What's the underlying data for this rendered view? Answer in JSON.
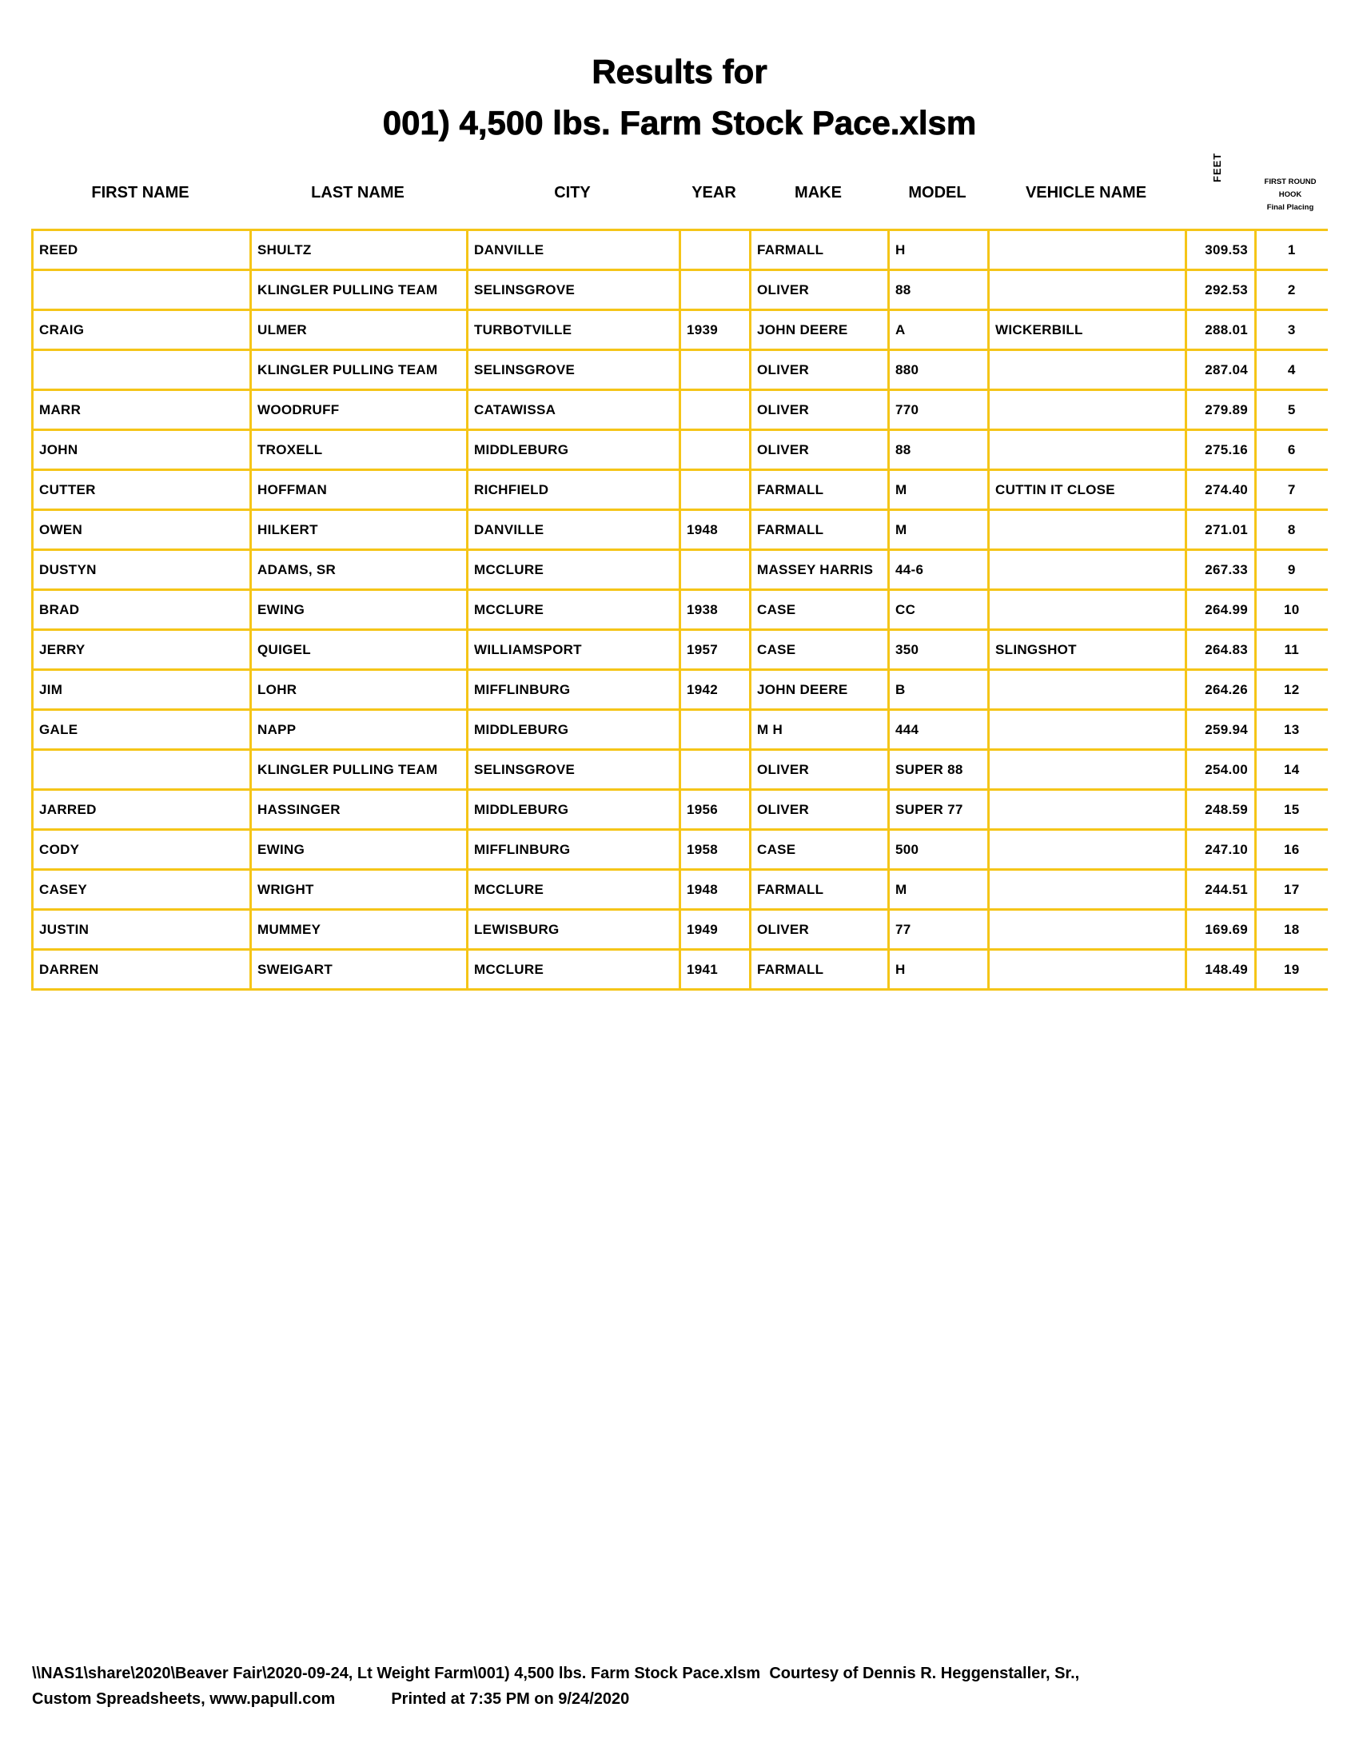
{
  "title": {
    "line1": "Results for",
    "line2": "001) 4,500 lbs. Farm Stock Pace.xlsm"
  },
  "headers": {
    "first_name": "FIRST NAME",
    "last_name": "LAST NAME",
    "city": "CITY",
    "year": "YEAR",
    "make": "MAKE",
    "model": "MODEL",
    "vehicle_name": "VEHICLE NAME",
    "feet": "FEET",
    "placing_line1": "FIRST ROUND",
    "placing_line2": "HOOK",
    "placing_line3": "Final Placing"
  },
  "accent_color": "#f5c518",
  "rows": [
    [
      "REED",
      "SHULTZ",
      "DANVILLE",
      "",
      "FARMALL",
      "H",
      "",
      "309.53",
      "1"
    ],
    [
      "",
      "KLINGLER PULLING TEAM",
      "SELINSGROVE",
      "",
      "OLIVER",
      "88",
      "",
      "292.53",
      "2"
    ],
    [
      "CRAIG",
      "ULMER",
      "TURBOTVILLE",
      "1939",
      "JOHN DEERE",
      "A",
      "WICKERBILL",
      "288.01",
      "3"
    ],
    [
      "",
      "KLINGLER PULLING TEAM",
      "SELINSGROVE",
      "",
      "OLIVER",
      "880",
      "",
      "287.04",
      "4"
    ],
    [
      "MARR",
      "WOODRUFF",
      "CATAWISSA",
      "",
      "OLIVER",
      "770",
      "",
      "279.89",
      "5"
    ],
    [
      "JOHN",
      "TROXELL",
      "MIDDLEBURG",
      "",
      "OLIVER",
      "88",
      "",
      "275.16",
      "6"
    ],
    [
      "CUTTER",
      "HOFFMAN",
      "RICHFIELD",
      "",
      "FARMALL",
      "M",
      "CUTTIN IT CLOSE",
      "274.40",
      "7"
    ],
    [
      "OWEN",
      "HILKERT",
      "DANVILLE",
      "1948",
      "FARMALL",
      "M",
      "",
      "271.01",
      "8"
    ],
    [
      "DUSTYN",
      "ADAMS, SR",
      "MCCLURE",
      "",
      "MASSEY HARRIS",
      "44-6",
      "",
      "267.33",
      "9"
    ],
    [
      "BRAD",
      "EWING",
      "MCCLURE",
      "1938",
      "CASE",
      "CC",
      "",
      "264.99",
      "10"
    ],
    [
      "JERRY",
      "QUIGEL",
      "WILLIAMSPORT",
      "1957",
      "CASE",
      "350",
      "SLINGSHOT",
      "264.83",
      "11"
    ],
    [
      "JIM",
      "LOHR",
      "MIFFLINBURG",
      "1942",
      "JOHN DEERE",
      "B",
      "",
      "264.26",
      "12"
    ],
    [
      "GALE",
      "NAPP",
      "MIDDLEBURG",
      "",
      "M H",
      "444",
      "",
      "259.94",
      "13"
    ],
    [
      "",
      "KLINGLER PULLING TEAM",
      "SELINSGROVE",
      "",
      "OLIVER",
      "SUPER 88",
      "",
      "254.00",
      "14"
    ],
    [
      "JARRED",
      "HASSINGER",
      "MIDDLEBURG",
      "1956",
      "OLIVER",
      "SUPER 77",
      "",
      "248.59",
      "15"
    ],
    [
      "CODY",
      "EWING",
      "MIFFLINBURG",
      "1958",
      "CASE",
      "500",
      "",
      "247.10",
      "16"
    ],
    [
      "CASEY",
      "WRIGHT",
      "MCCLURE",
      "1948",
      "FARMALL",
      "M",
      "",
      "244.51",
      "17"
    ],
    [
      "JUSTIN",
      "MUMMEY",
      "LEWISBURG",
      "1949",
      "OLIVER",
      "77",
      "",
      "169.69",
      "18"
    ],
    [
      "DARREN",
      "SWEIGART",
      "MCCLURE",
      "1941",
      "FARMALL",
      "H",
      "",
      "148.49",
      "19"
    ]
  ],
  "footer": {
    "line1": "\\\\NAS1\\share\\2020\\Beaver Fair\\2020-09-24, Lt Weight Farm\\001) 4,500 lbs. Farm Stock Pace.xlsm  Courtesy of Dennis R. Heggenstaller, Sr.,",
    "line2a": "Custom Spreadsheets, www.papull.com",
    "line2b": "Printed at 7:35 PM on 9/24/2020"
  }
}
